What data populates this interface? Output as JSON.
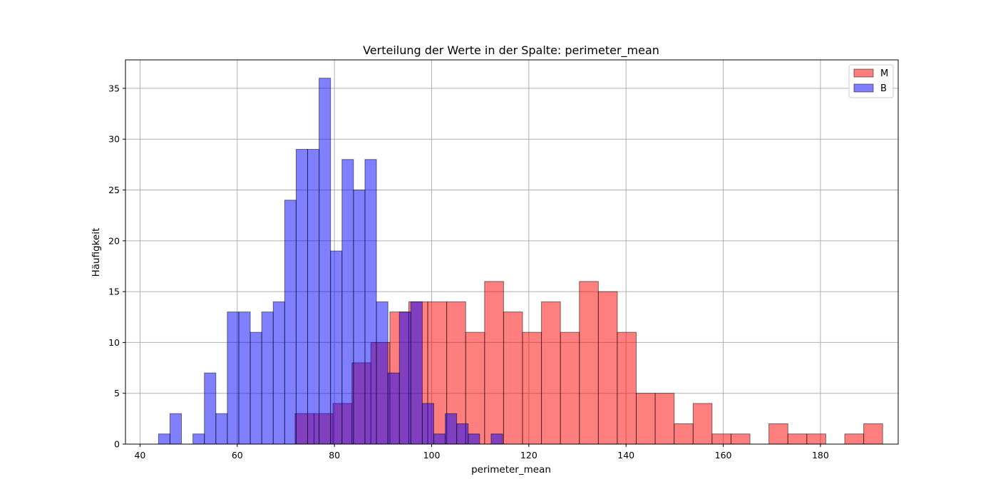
{
  "chart_data": {
    "type": "histogram",
    "title": "Verteilung der Werte in der Spalte: perimeter_mean",
    "xlabel": "perimeter_mean",
    "ylabel": "Häufigkeit",
    "xlim": [
      37,
      196
    ],
    "ylim": [
      0,
      37.8
    ],
    "xticks": [
      40,
      60,
      80,
      100,
      120,
      140,
      160,
      180
    ],
    "yticks": [
      0,
      5,
      10,
      15,
      20,
      25,
      30,
      35
    ],
    "grid": true,
    "legend_position": "top-right",
    "series": [
      {
        "name": "M",
        "color": "#ff0000",
        "opacity": 0.5,
        "bin_start": 71.9,
        "bin_width": 3.9,
        "values": [
          3,
          3,
          4,
          8,
          10,
          13,
          14,
          14,
          14,
          11,
          16,
          13,
          11,
          14,
          11,
          16,
          15,
          11,
          5,
          5,
          2,
          4,
          1,
          1,
          0,
          2,
          1,
          1,
          0,
          1,
          2
        ]
      },
      {
        "name": "B",
        "color": "#0000ff",
        "opacity": 0.5,
        "bin_start": 43.8,
        "bin_width": 2.36,
        "values": [
          1,
          3,
          0,
          1,
          7,
          3,
          13,
          13,
          11,
          13,
          14,
          24,
          29,
          29,
          36,
          19,
          28,
          25,
          28,
          14,
          7,
          13,
          14,
          4,
          1,
          3,
          2,
          1,
          0,
          1
        ]
      }
    ]
  }
}
